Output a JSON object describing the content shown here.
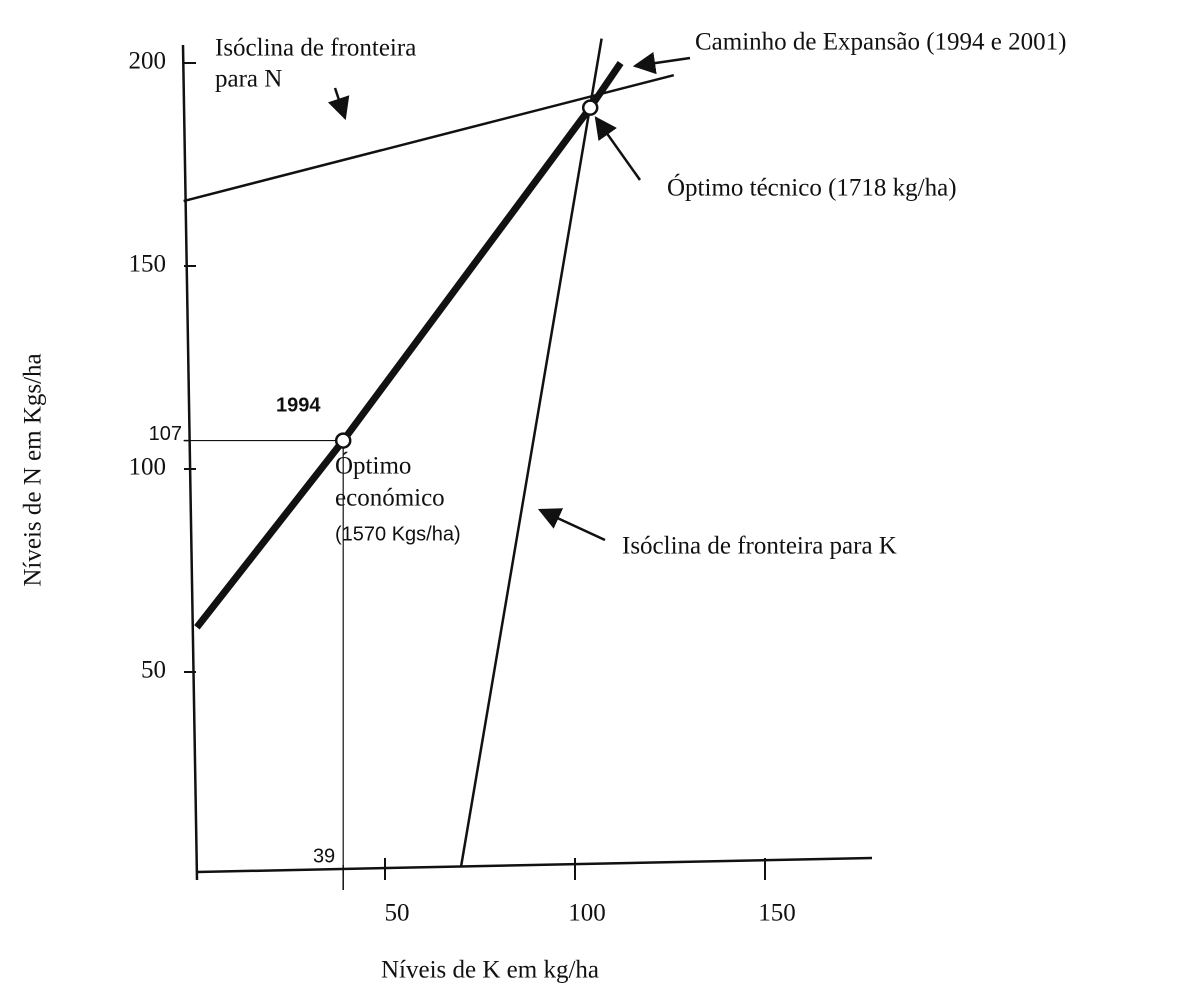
{
  "chart_data": {
    "type": "line",
    "x_label": "Níveis de K em kg/ha",
    "y_label": "Níveis de  N em Kgs/ha",
    "xlim": [
      0,
      177
    ],
    "ylim": [
      0,
      210
    ],
    "xticks": [
      39,
      50,
      100,
      150
    ],
    "yticks": [
      50,
      100,
      107,
      150,
      200
    ],
    "series": [
      {
        "color": "#111111",
        "width": 7,
        "x": [
          0.5,
          39,
          104,
          112
        ],
        "values": [
          61,
          107,
          189,
          200
        ]
      },
      {
        "color": "#111111",
        "width": 2.5,
        "x": [
          -3,
          126
        ],
        "values": [
          166,
          197
        ]
      },
      {
        "color": "#111111",
        "width": 2.5,
        "x": [
          70,
          107
        ],
        "values": [
          2,
          206
        ]
      },
      {
        "color": "#111111",
        "width": 1.2,
        "x": [
          -3,
          39,
          39
        ],
        "values": [
          107,
          107,
          0
        ]
      }
    ],
    "points": {
      "x": [
        39,
        104
      ],
      "values": [
        107,
        189
      ]
    },
    "annotations": [
      "Isóclina de fronteira",
      "para N",
      "Caminho de Expansão (1994 e 2001)",
      "Óptimo técnico (1718 kg/ha)",
      "1994",
      "Óptimo",
      "económico",
      "(1570 Kgs/ha)",
      "Isóclina de fronteira para K"
    ]
  }
}
